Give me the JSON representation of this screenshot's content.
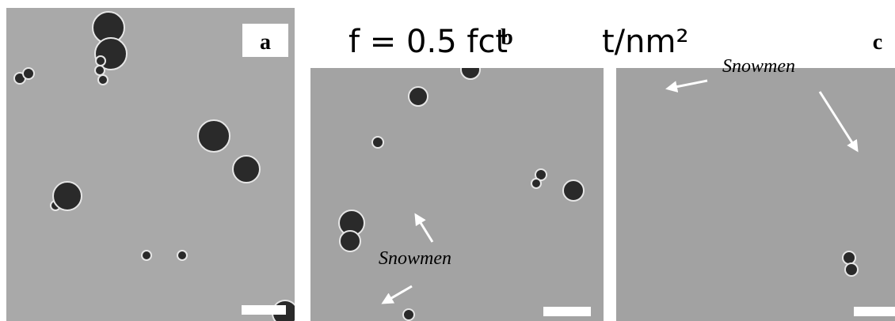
{
  "panels": [
    {
      "label": "a"
    },
    {
      "label": "b",
      "annotations": [
        "Snowmen"
      ]
    },
    {
      "label": "c",
      "annotations": [
        "Snowmen"
      ]
    }
  ],
  "overlay_text": [
    "f = 0.5 fct",
    "t/nm²"
  ]
}
